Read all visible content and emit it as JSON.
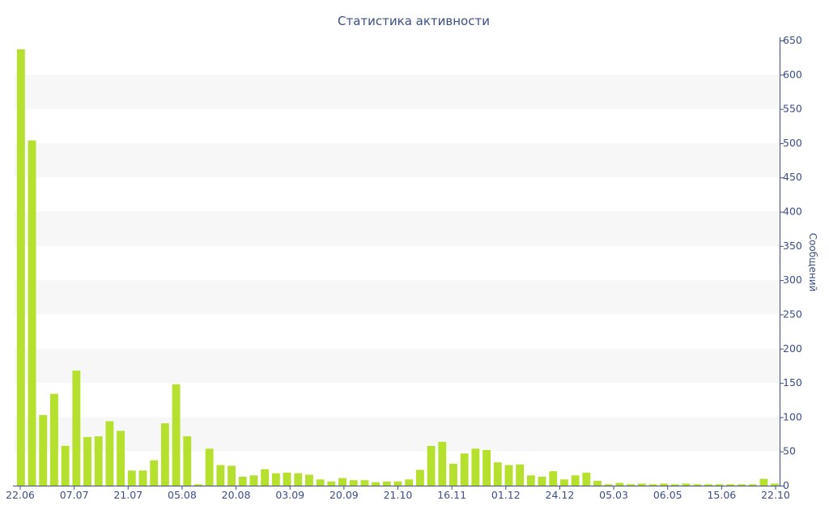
{
  "chart_data": {
    "type": "bar",
    "title": "Статистика активности",
    "xlabel": "",
    "ylabel": "Сообщений",
    "y_axis_side": "right",
    "ylim": [
      0,
      650
    ],
    "y_ticks": [
      0,
      50,
      100,
      150,
      200,
      250,
      300,
      350,
      400,
      450,
      500,
      550,
      600,
      650
    ],
    "x_tick_labels": [
      "22.06",
      "07.07",
      "21.07",
      "05.08",
      "20.08",
      "03.09",
      "20.09",
      "21.10",
      "16.11",
      "01.12",
      "24.12",
      "05.03",
      "06.05",
      "15.06",
      "22.10"
    ],
    "grid": "alternating horizontal bands",
    "bar_color": "#b5e02e",
    "band_color": "#f7f7f7",
    "text_color": "#3a4f8a",
    "values": [
      637,
      504,
      103,
      134,
      58,
      168,
      71,
      72,
      94,
      80,
      22,
      22,
      37,
      91,
      148,
      72,
      2,
      54,
      30,
      29,
      13,
      15,
      24,
      18,
      19,
      18,
      16,
      9,
      6,
      11,
      8,
      8,
      5,
      6,
      6,
      9,
      23,
      58,
      64,
      32,
      47,
      54,
      52,
      34,
      30,
      31,
      15,
      13,
      21,
      9,
      15,
      19,
      7,
      2,
      4,
      2,
      3,
      2,
      3,
      2,
      3,
      2,
      2,
      2,
      2,
      2,
      2,
      10,
      3
    ]
  }
}
